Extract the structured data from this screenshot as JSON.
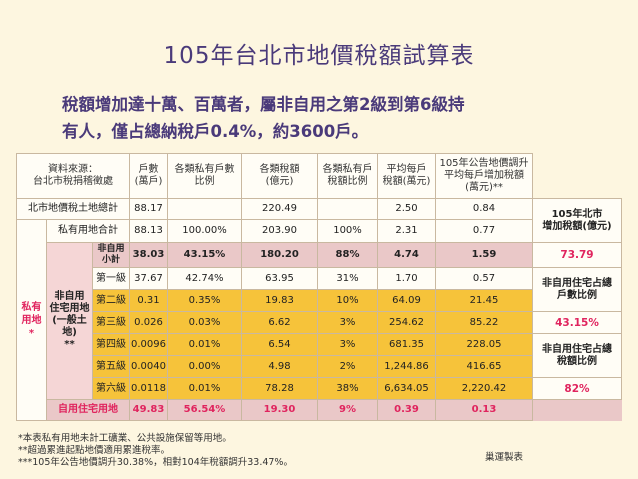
{
  "title": "105年台北市地價稅額試算表",
  "subtitle": [
    "稅額增加達十萬、百萬者，屬非自用之第2級到第6級持",
    "有人，僅占總納稅戶0.4%，約3600戶。"
  ],
  "header": {
    "source": "資料來源：\n台北市稅捐稽徵處",
    "households": "戶數\n(萬戶)",
    "household_ratio": "各類私有戶數\n比例",
    "tax_amount": "各類稅額\n(億元)",
    "tax_ratio": "各類私有戶\n稅額比例",
    "avg_tax": "平均每戶\n稅額(萬元)",
    "increase": "105年公告地價調升\n平均每戶增加稅額\n(萬元)**"
  },
  "rows": {
    "total": {
      "label": "北市地價稅土地總計",
      "households": "88.17",
      "ratio": "",
      "tax": "220.49",
      "tax_ratio": "",
      "avg": "2.50",
      "inc": "0.84"
    },
    "private": {
      "label": "私有用地合計",
      "households": "88.13",
      "ratio": "100.00%",
      "tax": "203.90",
      "tax_ratio": "100%",
      "avg": "2.31",
      "inc": "0.77"
    },
    "nonself_total": {
      "label": "非自用\n小計",
      "households": "38.03",
      "ratio": "43.15%",
      "tax": "180.20",
      "tax_ratio": "88%",
      "avg": "4.74",
      "inc": "1.59"
    },
    "levels": [
      {
        "label": "第一級",
        "households": "37.67",
        "ratio": "42.74%",
        "tax": "63.95",
        "tax_ratio": "31%",
        "avg": "1.70",
        "inc": "0.57"
      },
      {
        "label": "第二級",
        "households": "0.31",
        "ratio": "0.35%",
        "tax": "19.83",
        "tax_ratio": "10%",
        "avg": "64.09",
        "inc": "21.45"
      },
      {
        "label": "第三級",
        "households": "0.026",
        "ratio": "0.03%",
        "tax": "6.62",
        "tax_ratio": "3%",
        "avg": "254.62",
        "inc": "85.22"
      },
      {
        "label": "第四級",
        "households": "0.0096",
        "ratio": "0.01%",
        "tax": "6.54",
        "tax_ratio": "3%",
        "avg": "681.35",
        "inc": "228.05"
      },
      {
        "label": "第五級",
        "households": "0.0040",
        "ratio": "0.00%",
        "tax": "4.98",
        "tax_ratio": "2%",
        "avg": "1,244.86",
        "inc": "416.65"
      },
      {
        "label": "第六級",
        "households": "0.0118",
        "ratio": "0.01%",
        "tax": "78.28",
        "tax_ratio": "38%",
        "avg": "6,634.05",
        "inc": "2,220.42"
      }
    ],
    "self_use": {
      "label": "自用住宅用地",
      "households": "49.83",
      "ratio": "56.54%",
      "tax": "19.30",
      "tax_ratio": "9%",
      "avg": "0.39",
      "inc": "0.13"
    }
  },
  "side_labels": {
    "private_land": "私有\n用地\n*",
    "nonself_residential": "非自用\n住宅用地\n(一般土地)\n**"
  },
  "right_panel": {
    "increase_label": "105年北市\n增加稅額(億元)",
    "increase_value": "73.79",
    "household_share_label": "非自用住宅占總\n戶數比例",
    "household_share_value": "43.15%",
    "tax_share_label": "非自用住宅占總\n稅額比例",
    "tax_share_value": "82%"
  },
  "footer": [
    "*本表私有用地未計工礦業、公共設施保留等用地。",
    "**超過累進起點地價適用累進稅率。",
    "***105年公告地價調升30.38%，相對104年稅額調升33.47%。"
  ],
  "maker": "巢運製表"
}
